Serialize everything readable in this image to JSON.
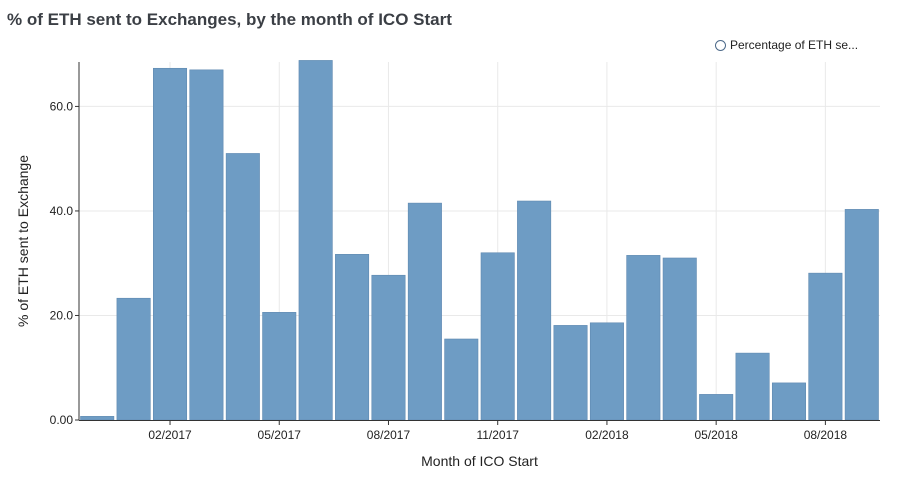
{
  "chart_data": {
    "type": "bar",
    "title": "% of ETH sent to Exchanges, by the month of ICO Start",
    "xlabel": "Month of ICO Start",
    "ylabel": "% of ETH sent to Exchange",
    "ylim": [
      0,
      68.5
    ],
    "yticks": [
      0,
      20,
      40,
      60
    ],
    "ytick_labels": [
      "0.00",
      "20.0",
      "40.0",
      "60.0"
    ],
    "xtick_labels": [
      "02/2017",
      "05/2017",
      "08/2017",
      "11/2017",
      "02/2018",
      "05/2018",
      "08/2018"
    ],
    "grid": true,
    "legend_position": "top-right",
    "categories": [
      "12/2016",
      "01/2017",
      "02/2017",
      "03/2017",
      "04/2017",
      "05/2017",
      "06/2017",
      "07/2017",
      "08/2017",
      "09/2017",
      "10/2017",
      "11/2017",
      "12/2017",
      "01/2018",
      "02/2018",
      "03/2018",
      "04/2018",
      "05/2018",
      "06/2018",
      "07/2018",
      "08/2018",
      "09/2018"
    ],
    "series": [
      {
        "name": "Percentage of ETH se...",
        "color": "#6e9cc4",
        "values": [
          0.7,
          23.3,
          67.3,
          67.0,
          51.0,
          20.6,
          68.8,
          31.7,
          27.7,
          41.5,
          15.5,
          32.0,
          41.9,
          18.1,
          18.6,
          31.5,
          31.0,
          4.9,
          12.8,
          7.1,
          28.1,
          40.3
        ]
      }
    ]
  }
}
